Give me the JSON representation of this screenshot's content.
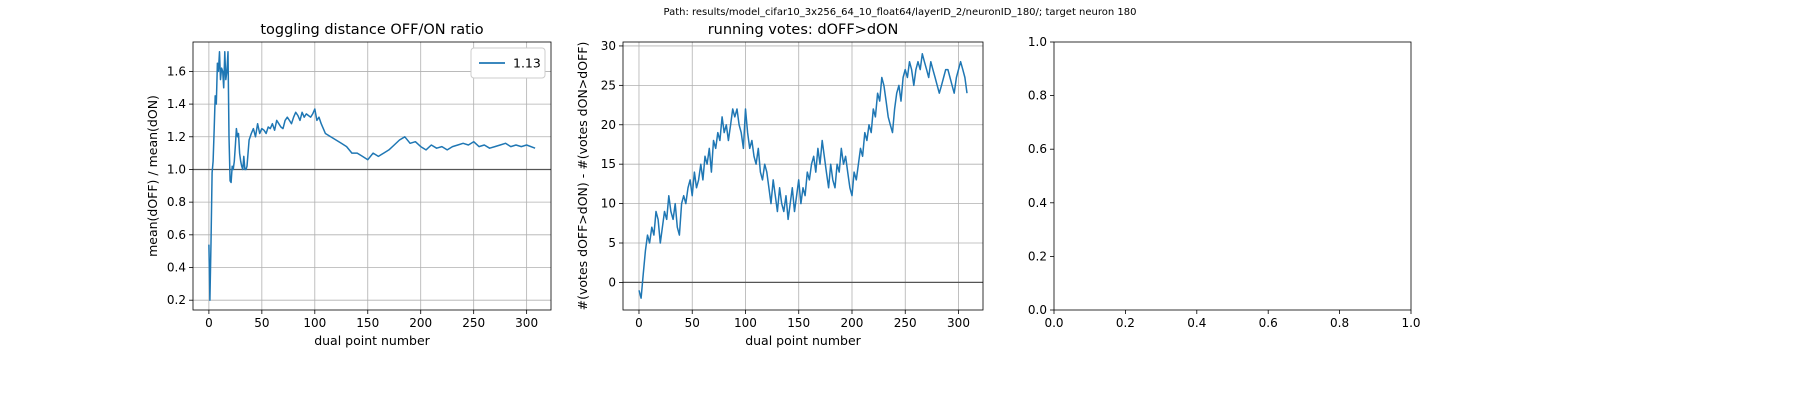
{
  "suptitle": "Path: results/model_cifar10_3x256_64_10_float64/layerID_2/neuronID_180/; target neuron 180",
  "chart_data": [
    {
      "type": "line",
      "title": "toggling distance OFF/ON ratio",
      "xlabel": "dual point number",
      "ylabel": "mean(dOFF) / mean(dON)",
      "xlim": [
        -15,
        323
      ],
      "ylim": [
        0.14,
        1.78
      ],
      "xticks": [
        0,
        50,
        100,
        150,
        200,
        250,
        300
      ],
      "yticks": [
        0.2,
        0.4,
        0.6,
        0.8,
        1.0,
        1.2,
        1.4,
        1.6
      ],
      "ytick_labels": [
        "0.2",
        "0.4",
        "0.6",
        "0.8",
        "1.0",
        "1.2",
        "1.4",
        "1.6"
      ],
      "grid": true,
      "hline": 1.0,
      "legend": "top-right",
      "series": [
        {
          "name": "1.13",
          "color": "#1f77b4",
          "x": [
            0,
            1,
            2,
            3,
            4,
            5,
            6,
            7,
            8,
            9,
            10,
            11,
            12,
            13,
            14,
            15,
            16,
            17,
            18,
            19,
            20,
            21,
            22,
            23,
            24,
            25,
            26,
            27,
            28,
            29,
            30,
            31,
            32,
            33,
            34,
            35,
            36,
            38,
            40,
            42,
            44,
            46,
            48,
            50,
            52,
            54,
            56,
            58,
            60,
            62,
            64,
            66,
            68,
            70,
            72,
            74,
            76,
            78,
            80,
            82,
            84,
            86,
            88,
            90,
            92,
            94,
            96,
            98,
            100,
            102,
            104,
            106,
            108,
            110,
            115,
            120,
            125,
            130,
            135,
            140,
            145,
            150,
            155,
            160,
            165,
            170,
            175,
            180,
            185,
            190,
            195,
            200,
            205,
            210,
            215,
            220,
            225,
            230,
            235,
            240,
            245,
            250,
            255,
            260,
            265,
            270,
            275,
            280,
            285,
            290,
            295,
            300,
            308
          ],
          "y": [
            0.54,
            0.2,
            0.55,
            0.98,
            1.05,
            1.25,
            1.45,
            1.4,
            1.65,
            1.6,
            1.72,
            1.55,
            1.62,
            1.6,
            1.5,
            1.72,
            1.55,
            1.6,
            1.72,
            1.2,
            0.93,
            0.92,
            1.02,
            1.0,
            1.05,
            1.15,
            1.25,
            1.2,
            1.22,
            1.1,
            1.05,
            1.02,
            1.0,
            1.08,
            1.0,
            1.0,
            1.02,
            1.18,
            1.22,
            1.25,
            1.2,
            1.28,
            1.22,
            1.25,
            1.24,
            1.22,
            1.26,
            1.25,
            1.28,
            1.24,
            1.3,
            1.28,
            1.26,
            1.25,
            1.3,
            1.32,
            1.3,
            1.28,
            1.32,
            1.35,
            1.33,
            1.3,
            1.35,
            1.32,
            1.34,
            1.33,
            1.32,
            1.34,
            1.37,
            1.3,
            1.32,
            1.28,
            1.25,
            1.22,
            1.2,
            1.18,
            1.16,
            1.14,
            1.1,
            1.1,
            1.08,
            1.06,
            1.1,
            1.08,
            1.1,
            1.12,
            1.15,
            1.18,
            1.2,
            1.16,
            1.17,
            1.14,
            1.12,
            1.15,
            1.13,
            1.14,
            1.12,
            1.14,
            1.15,
            1.16,
            1.15,
            1.17,
            1.14,
            1.15,
            1.13,
            1.14,
            1.15,
            1.16,
            1.14,
            1.15,
            1.14,
            1.15,
            1.13
          ]
        }
      ]
    },
    {
      "type": "line",
      "title": "running votes: dOFF>dON",
      "xlabel": "dual point number",
      "ylabel": "#(votes dOFF>dON) - #(votes dON>dOFF)",
      "xlim": [
        -15,
        323
      ],
      "ylim": [
        -3.5,
        30.5
      ],
      "xticks": [
        0,
        50,
        100,
        150,
        200,
        250,
        300
      ],
      "yticks": [
        0,
        5,
        10,
        15,
        20,
        25,
        30
      ],
      "ytick_labels": [
        "0",
        "5",
        "10",
        "15",
        "20",
        "25",
        "30"
      ],
      "grid": true,
      "hline": 0,
      "series": [
        {
          "color": "#1f77b4",
          "x": [
            0,
            2,
            4,
            6,
            8,
            10,
            12,
            14,
            16,
            18,
            20,
            22,
            24,
            26,
            28,
            30,
            32,
            34,
            36,
            38,
            40,
            42,
            44,
            46,
            48,
            50,
            52,
            54,
            56,
            58,
            60,
            62,
            64,
            66,
            68,
            70,
            72,
            74,
            76,
            78,
            80,
            82,
            84,
            86,
            88,
            90,
            92,
            94,
            96,
            98,
            100,
            102,
            104,
            106,
            108,
            110,
            112,
            114,
            116,
            118,
            120,
            122,
            124,
            126,
            128,
            130,
            132,
            134,
            136,
            138,
            140,
            142,
            144,
            146,
            148,
            150,
            152,
            154,
            156,
            158,
            160,
            162,
            164,
            166,
            168,
            170,
            172,
            174,
            176,
            178,
            180,
            182,
            184,
            186,
            188,
            190,
            192,
            194,
            196,
            198,
            200,
            202,
            204,
            206,
            208,
            210,
            212,
            214,
            216,
            218,
            220,
            222,
            224,
            226,
            228,
            230,
            232,
            234,
            236,
            238,
            240,
            242,
            244,
            246,
            248,
            250,
            252,
            254,
            256,
            258,
            260,
            262,
            264,
            266,
            268,
            270,
            272,
            274,
            276,
            278,
            280,
            282,
            284,
            286,
            288,
            290,
            292,
            294,
            296,
            298,
            300,
            302,
            304,
            306,
            308
          ],
          "y": [
            -1,
            -2,
            1,
            4,
            6,
            5,
            7,
            6,
            9,
            8,
            5,
            7,
            9,
            8,
            11,
            9,
            8,
            10,
            7,
            6,
            10,
            11,
            10,
            12,
            13,
            11,
            14,
            12,
            13,
            15,
            13,
            16,
            15,
            17,
            14,
            18,
            17,
            19,
            18,
            21,
            19,
            20,
            18,
            20,
            22,
            21,
            22,
            20,
            19,
            17,
            22,
            19,
            17,
            18,
            16,
            15,
            17,
            14,
            13,
            15,
            14,
            12,
            10,
            13,
            11,
            9,
            12,
            10,
            9,
            11,
            8,
            10,
            12,
            9,
            11,
            13,
            10,
            12,
            11,
            14,
            13,
            15,
            16,
            14,
            17,
            15,
            18,
            16,
            14,
            12,
            15,
            13,
            12,
            15,
            14,
            17,
            15,
            16,
            14,
            12,
            11,
            14,
            13,
            15,
            17,
            16,
            19,
            18,
            20,
            19,
            22,
            21,
            24,
            23,
            26,
            25,
            23,
            21,
            20,
            19,
            22,
            24,
            25,
            23,
            26,
            27,
            26,
            28,
            27,
            25,
            27,
            28,
            27,
            29,
            28,
            27,
            26,
            28,
            27,
            26,
            25,
            24,
            25,
            26,
            27,
            27,
            26,
            25,
            24,
            26,
            27,
            28,
            27,
            26,
            24
          ]
        }
      ]
    },
    {
      "type": "line",
      "title": "",
      "xlabel": "",
      "ylabel": "",
      "xlim": [
        0,
        1
      ],
      "ylim": [
        0,
        1
      ],
      "xticks": [
        0,
        0.2,
        0.4,
        0.6,
        0.8,
        1.0
      ],
      "xtick_labels": [
        "0.0",
        "0.2",
        "0.4",
        "0.6",
        "0.8",
        "1.0"
      ],
      "yticks": [
        0,
        0.2,
        0.4,
        0.6,
        0.8,
        1.0
      ],
      "ytick_labels": [
        "0.0",
        "0.2",
        "0.4",
        "0.6",
        "0.8",
        "1.0"
      ],
      "grid": false,
      "series": []
    }
  ]
}
